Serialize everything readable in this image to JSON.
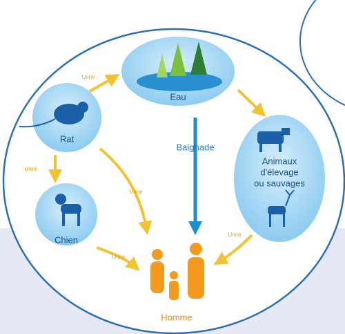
{
  "nodes": [
    {
      "label": "Eau"
    },
    {
      "label": "Rat"
    },
    {
      "label": "Chien"
    },
    {
      "label": [
        "Animaux",
        "d'élevage",
        "ou sauvages"
      ]
    },
    {
      "label": "Homme"
    }
  ],
  "edges": [
    {
      "label": "Urine"
    },
    {
      "label": "Urine"
    },
    {
      "label": "Urine"
    },
    {
      "label": "Urine"
    },
    {
      "label": "Urine"
    },
    {
      "label": "Baignade"
    }
  ]
}
